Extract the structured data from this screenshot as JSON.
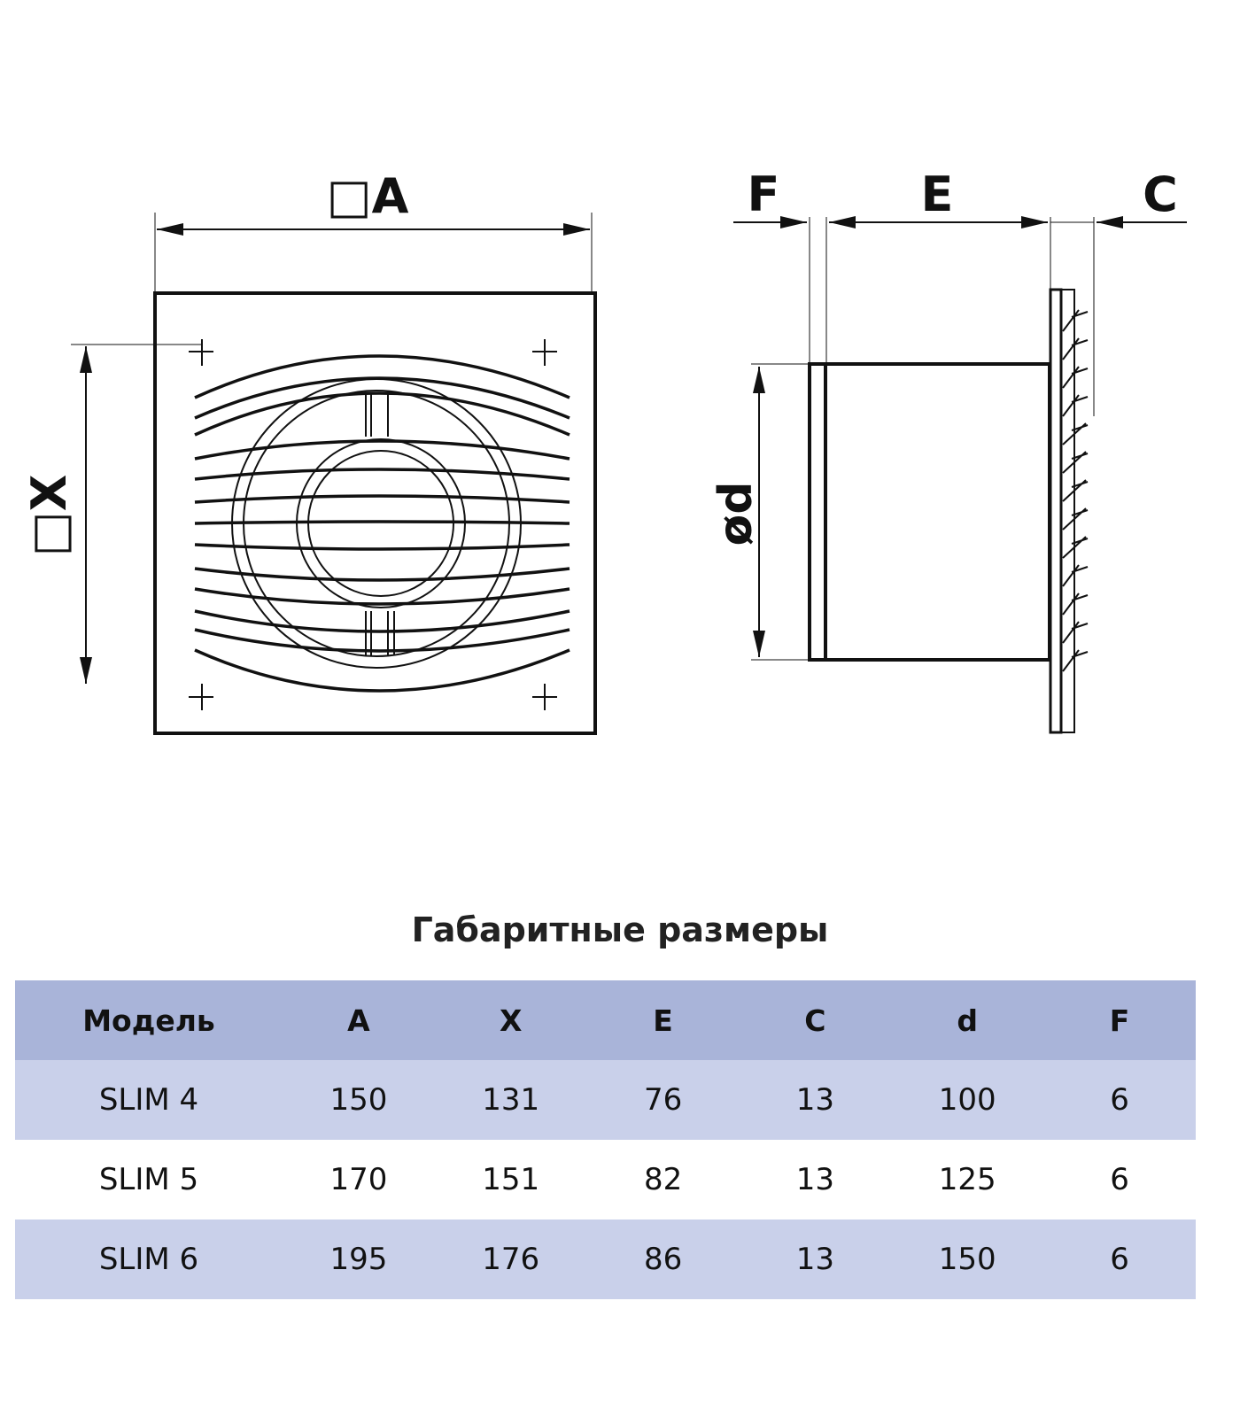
{
  "drawing": {
    "front_width_label": "□A",
    "front_height_label": "□X",
    "side_labels": {
      "F": "F",
      "E": "E",
      "C": "C",
      "d": "ød"
    }
  },
  "table": {
    "title": "Габаритные размеры",
    "headers": [
      "Модель",
      "A",
      "X",
      "E",
      "C",
      "d",
      "F"
    ],
    "rows": [
      [
        "SLIM 4",
        "150",
        "131",
        "76",
        "13",
        "100",
        "6"
      ],
      [
        "SLIM 5",
        "170",
        "151",
        "82",
        "13",
        "125",
        "6"
      ],
      [
        "SLIM 6",
        "195",
        "176",
        "86",
        "13",
        "150",
        "6"
      ]
    ],
    "colors": {
      "header": "#a9b4d9",
      "row_shaded": "#c9d0ea"
    }
  }
}
